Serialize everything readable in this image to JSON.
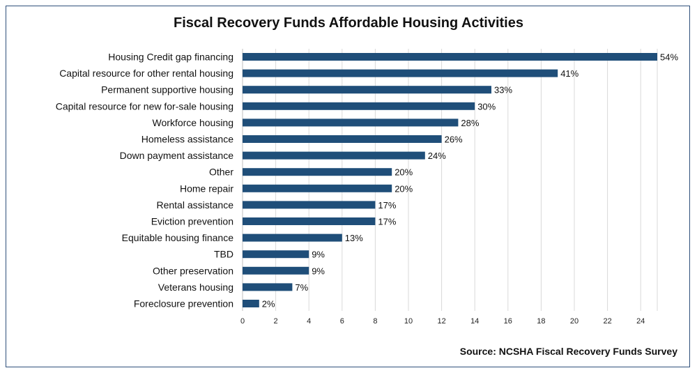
{
  "chart_data": {
    "type": "bar",
    "orientation": "horizontal",
    "title": "Fiscal Recovery Funds Affordable Housing Activities",
    "source": "Source: NCSHA Fiscal Recovery Funds Survey",
    "categories": [
      "Housing Credit gap financing",
      "Capital resource for other rental housing",
      "Permanent supportive housing",
      "Capital resource for new for-sale housing",
      "Workforce housing",
      "Homeless assistance",
      "Down payment assistance",
      "Other",
      "Home repair",
      "Rental assistance",
      "Eviction prevention",
      "Equitable housing finance",
      "TBD",
      "Other preservation",
      "Veterans housing",
      "Foreclosure prevention"
    ],
    "values": [
      25,
      19,
      15,
      14,
      13,
      12,
      11,
      9,
      9,
      8,
      8,
      6,
      4,
      4,
      3,
      1
    ],
    "data_labels": [
      "54%",
      "41%",
      "33%",
      "30%",
      "28%",
      "26%",
      "24%",
      "20%",
      "20%",
      "17%",
      "17%",
      "13%",
      "9%",
      "9%",
      "7%",
      "2%"
    ],
    "xlim": [
      0,
      25
    ],
    "xticks": [
      0,
      2,
      4,
      6,
      8,
      10,
      12,
      14,
      16,
      18,
      20,
      22,
      24
    ],
    "grid": true,
    "legend": "none",
    "bar_color": "#1f4e79",
    "grid_color": "#d9d9d9",
    "border_color": "#2e4f7a"
  }
}
